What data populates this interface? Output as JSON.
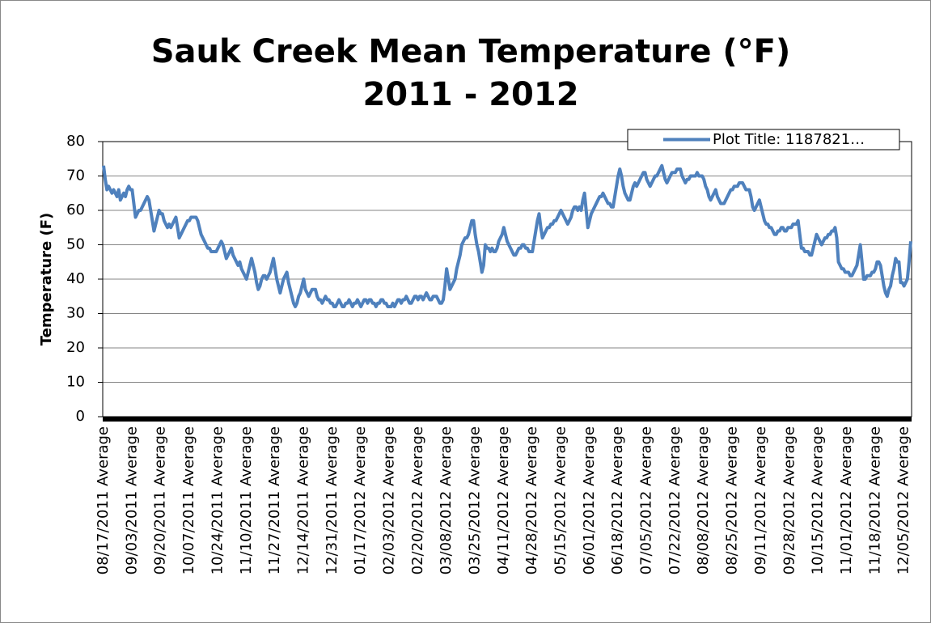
{
  "chart_data": {
    "type": "line",
    "title": "Sauk Creek Mean Temperature (°F) 2011 - 2012",
    "y_label": "Temperature (F)",
    "legend": "top-right",
    "grid": true,
    "ylim": [
      0,
      80
    ],
    "yticks": [
      0,
      10,
      20,
      30,
      40,
      50,
      60,
      70,
      80
    ],
    "categories": [
      "08/17/2011 Average",
      null,
      null,
      null,
      null,
      null,
      null,
      null,
      null,
      null,
      null,
      null,
      null,
      null,
      null,
      null,
      null,
      "09/03/2011 Average",
      null,
      null,
      null,
      null,
      null,
      null,
      null,
      null,
      null,
      null,
      null,
      null,
      null,
      null,
      null,
      null,
      "09/20/2011 Average",
      null,
      null,
      null,
      null,
      null,
      null,
      null,
      null,
      null,
      null,
      null,
      null,
      null,
      null,
      null,
      null,
      "10/07/2011 Average",
      null,
      null,
      null,
      null,
      null,
      null,
      null,
      null,
      null,
      null,
      null,
      null,
      null,
      null,
      null,
      null,
      "10/24/2011 Average",
      null,
      null,
      null,
      null,
      null,
      null,
      null,
      null,
      null,
      null,
      null,
      null,
      null,
      null,
      null,
      null,
      "11/10/2011 Average",
      null,
      null,
      null,
      null,
      null,
      null,
      null,
      null,
      null,
      null,
      null,
      null,
      null,
      null,
      null,
      null,
      "11/27/2011 Average",
      null,
      null,
      null,
      null,
      null,
      null,
      null,
      null,
      null,
      null,
      null,
      null,
      null,
      null,
      null,
      null,
      "12/14/2011 Average",
      null,
      null,
      null,
      null,
      null,
      null,
      null,
      null,
      null,
      null,
      null,
      null,
      null,
      null,
      null,
      null,
      "12/31/2011 Average",
      null,
      null,
      null,
      null,
      null,
      null,
      null,
      null,
      null,
      null,
      null,
      null,
      null,
      null,
      null,
      null,
      "01/17/2012 Average",
      null,
      null,
      null,
      null,
      null,
      null,
      null,
      null,
      null,
      null,
      null,
      null,
      null,
      null,
      null,
      null,
      "02/03/2012 Average",
      null,
      null,
      null,
      null,
      null,
      null,
      null,
      null,
      null,
      null,
      null,
      null,
      null,
      null,
      null,
      null,
      "02/20/2012 Average",
      null,
      null,
      null,
      null,
      null,
      null,
      null,
      null,
      null,
      null,
      null,
      null,
      null,
      null,
      null,
      null,
      "03/08/2012 Average",
      null,
      null,
      null,
      null,
      null,
      null,
      null,
      null,
      null,
      null,
      null,
      null,
      null,
      null,
      null,
      null,
      "03/25/2012 Average",
      null,
      null,
      null,
      null,
      null,
      null,
      null,
      null,
      null,
      null,
      null,
      null,
      null,
      null,
      null,
      null,
      "04/11/2012 Average",
      null,
      null,
      null,
      null,
      null,
      null,
      null,
      null,
      null,
      null,
      null,
      null,
      null,
      null,
      null,
      null,
      "04/28/2012 Average",
      null,
      null,
      null,
      null,
      null,
      null,
      null,
      null,
      null,
      null,
      null,
      null,
      null,
      null,
      null,
      null,
      "05/15/2012 Average",
      null,
      null,
      null,
      null,
      null,
      null,
      null,
      null,
      null,
      null,
      null,
      null,
      null,
      null,
      null,
      null,
      "06/01/2012 Average",
      null,
      null,
      null,
      null,
      null,
      null,
      null,
      null,
      null,
      null,
      null,
      null,
      null,
      null,
      null,
      null,
      "06/18/2012 Average",
      null,
      null,
      null,
      null,
      null,
      null,
      null,
      null,
      null,
      null,
      null,
      null,
      null,
      null,
      null,
      null,
      "07/05/2012 Average",
      null,
      null,
      null,
      null,
      null,
      null,
      null,
      null,
      null,
      null,
      null,
      null,
      null,
      null,
      null,
      null,
      "07/22/2012 Average",
      null,
      null,
      null,
      null,
      null,
      null,
      null,
      null,
      null,
      null,
      null,
      null,
      null,
      null,
      null,
      null,
      "08/08/2012 Average",
      null,
      null,
      null,
      null,
      null,
      null,
      null,
      null,
      null,
      null,
      null,
      null,
      null,
      null,
      null,
      null,
      "08/25/2012 Average",
      null,
      null,
      null,
      null,
      null,
      null,
      null,
      null,
      null,
      null,
      null,
      null,
      null,
      null,
      null,
      null,
      "09/11/2012 Average",
      null,
      null,
      null,
      null,
      null,
      null,
      null,
      null,
      null,
      null,
      null,
      null,
      null,
      null,
      null,
      null,
      "09/28/2012 Average",
      null,
      null,
      null,
      null,
      null,
      null,
      null,
      null,
      null,
      null,
      null,
      null,
      null,
      null,
      null,
      null,
      "10/15/2012 Average",
      null,
      null,
      null,
      null,
      null,
      null,
      null,
      null,
      null,
      null,
      null,
      null,
      null,
      null,
      null,
      null,
      "11/01/2012 Average",
      null,
      null,
      null,
      null,
      null,
      null,
      null,
      null,
      null,
      null,
      null,
      null,
      null,
      null,
      null,
      null,
      "11/18/2012 Average",
      null,
      null,
      null,
      null,
      null,
      null,
      null,
      null,
      null,
      null,
      null,
      null,
      null,
      null,
      null,
      null,
      "12/05/2012 Average",
      null,
      null,
      null,
      null
    ],
    "series": [
      {
        "name": "Plot Title: 1187821…",
        "color": "#4f81bd",
        "values": [
          73,
          69,
          66,
          67,
          66,
          65,
          66,
          65,
          64,
          66,
          63,
          64,
          65,
          64,
          66,
          67,
          66,
          66,
          62,
          58,
          59,
          60,
          60,
          61,
          62,
          63,
          64,
          63,
          60,
          57,
          54,
          56,
          58,
          60,
          59,
          59,
          57,
          56,
          55,
          56,
          55,
          56,
          57,
          58,
          55,
          52,
          53,
          54,
          55,
          56,
          57,
          57,
          58,
          58,
          58,
          58,
          57,
          55,
          53,
          52,
          51,
          50,
          49,
          49,
          48,
          48,
          48,
          48,
          49,
          50,
          51,
          50,
          48,
          46,
          47,
          48,
          49,
          47,
          46,
          45,
          44,
          45,
          43,
          42,
          41,
          40,
          42,
          44,
          46,
          44,
          42,
          39,
          37,
          38,
          40,
          41,
          41,
          40,
          41,
          42,
          44,
          46,
          43,
          40,
          38,
          36,
          38,
          40,
          41,
          42,
          39,
          37,
          35,
          33,
          32,
          33,
          35,
          36,
          38,
          40,
          37,
          36,
          35,
          36,
          37,
          37,
          37,
          35,
          34,
          34,
          33,
          34,
          35,
          34,
          34,
          33,
          33,
          32,
          32,
          33,
          34,
          33,
          32,
          32,
          33,
          33,
          34,
          33,
          32,
          33,
          33,
          34,
          33,
          32,
          33,
          34,
          34,
          33,
          34,
          34,
          33,
          33,
          32,
          33,
          33,
          34,
          34,
          33,
          33,
          32,
          32,
          32,
          33,
          32,
          33,
          34,
          34,
          33,
          34,
          34,
          35,
          34,
          33,
          33,
          34,
          35,
          35,
          34,
          35,
          35,
          34,
          35,
          36,
          35,
          34,
          34,
          35,
          35,
          35,
          34,
          33,
          33,
          34,
          38,
          43,
          40,
          37,
          38,
          39,
          40,
          43,
          45,
          47,
          50,
          51,
          52,
          52,
          53,
          55,
          57,
          57,
          53,
          50,
          48,
          45,
          42,
          44,
          50,
          49,
          49,
          48,
          49,
          48,
          48,
          49,
          51,
          52,
          53,
          55,
          53,
          51,
          50,
          49,
          48,
          47,
          47,
          48,
          49,
          49,
          50,
          50,
          49,
          49,
          48,
          48,
          48,
          51,
          54,
          57,
          59,
          55,
          52,
          53,
          54,
          55,
          55,
          56,
          56,
          57,
          57,
          58,
          59,
          60,
          59,
          58,
          57,
          56,
          57,
          58,
          60,
          61,
          61,
          60,
          61,
          60,
          63,
          65,
          60,
          55,
          57,
          59,
          60,
          61,
          62,
          63,
          64,
          64,
          65,
          64,
          63,
          62,
          62,
          61,
          61,
          64,
          67,
          70,
          72,
          70,
          67,
          65,
          64,
          63,
          63,
          65,
          67,
          68,
          67,
          68,
          69,
          70,
          71,
          71,
          69,
          68,
          67,
          68,
          69,
          70,
          70,
          71,
          72,
          73,
          71,
          69,
          68,
          69,
          70,
          71,
          71,
          71,
          72,
          72,
          72,
          70,
          69,
          68,
          69,
          69,
          70,
          70,
          70,
          70,
          71,
          70,
          70,
          70,
          69,
          67,
          66,
          64,
          63,
          64,
          65,
          66,
          64,
          63,
          62,
          62,
          62,
          63,
          64,
          65,
          66,
          66,
          67,
          67,
          67,
          68,
          68,
          68,
          67,
          66,
          66,
          66,
          64,
          61,
          60,
          61,
          62,
          63,
          61,
          59,
          57,
          56,
          56,
          55,
          55,
          54,
          53,
          53,
          54,
          54,
          55,
          55,
          54,
          54,
          55,
          55,
          55,
          56,
          56,
          56,
          57,
          53,
          49,
          49,
          48,
          48,
          48,
          47,
          47,
          49,
          51,
          53,
          52,
          51,
          50,
          51,
          52,
          52,
          53,
          53,
          54,
          54,
          55,
          52,
          45,
          44,
          43,
          43,
          42,
          42,
          42,
          41,
          41,
          42,
          43,
          44,
          47,
          50,
          45,
          40,
          40,
          41,
          41,
          41,
          42,
          42,
          43,
          45,
          45,
          44,
          41,
          38,
          36,
          35,
          37,
          38,
          41,
          43,
          46,
          45,
          45,
          39,
          39,
          38,
          39,
          40,
          45,
          51
        ]
      }
    ]
  }
}
